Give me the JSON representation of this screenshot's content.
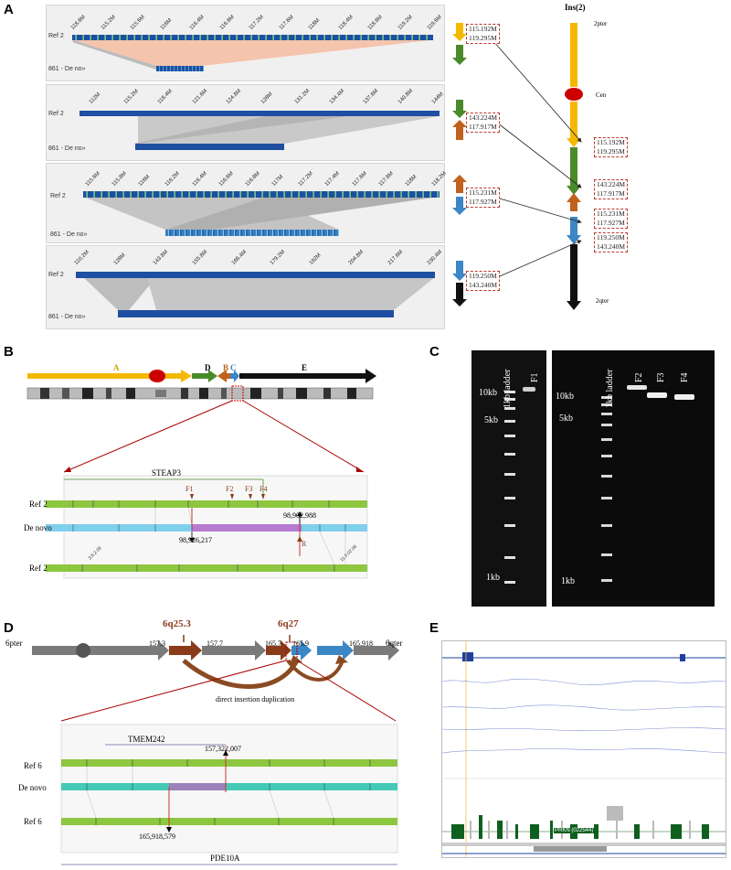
{
  "panels": {
    "a": "A",
    "b": "B",
    "c": "C",
    "d": "D",
    "e": "E"
  },
  "panelA": {
    "rows": [
      {
        "ref_label": "Ref 2",
        "query_label": "861 - De no»",
        "ticks": [
          "118.8M",
          "115.2M",
          "115.6M",
          "116M",
          "116.4M",
          "116.8M",
          "117.2M",
          "117.6M",
          "118M",
          "118.4M",
          "118.8M",
          "119.2M",
          "119.6M"
        ]
      },
      {
        "ref_label": "Ref 2",
        "query_label": "861 - De no»",
        "ticks": [
          "112M",
          "115.2M",
          "118.4M",
          "121.6M",
          "124.8M",
          "128M",
          "131.2M",
          "134.4M",
          "137.6M",
          "140.8M",
          "144M"
        ]
      },
      {
        "ref_label": "Ref 2",
        "query_label": "861 - De no»",
        "ticks": [
          "115.6M",
          "115.8M",
          "116M",
          "116.2M",
          "116.4M",
          "116.6M",
          "116.8M",
          "117M",
          "117.2M",
          "117.4M",
          "117.6M",
          "117.8M",
          "118M",
          "118.2M"
        ]
      },
      {
        "ref_label": "Ref 2",
        "query_label": "861 - De no»",
        "ticks": [
          "110.2M",
          "128M",
          "143.8M",
          "155.8M",
          "166.4M",
          "179.2M",
          "192M",
          "204.8M",
          "217.6M",
          "230.4M"
        ]
      }
    ],
    "coords": [
      [
        "115.192M",
        "119.295M"
      ],
      [
        "143.224M",
        "117.917M"
      ],
      [
        "115.231M",
        "117.927M"
      ],
      [
        "119.250M",
        "143.240M"
      ]
    ],
    "ins_title": "Ins(2)",
    "pter": "2pter",
    "cen": "Cen",
    "qter": "2qter",
    "right_coords": [
      [
        "115.192M",
        "119.295M"
      ],
      [
        "143.224M",
        "117.917M"
      ],
      [
        "115.231M",
        "117.927M"
      ],
      [
        "119.250M",
        "143.240M"
      ]
    ]
  },
  "panelB": {
    "seg_labels": {
      "a": "A",
      "d": "D",
      "b": "B",
      "c": "C",
      "e": "E"
    },
    "gene": "STEAP3",
    "primers": [
      "F1",
      "F2",
      "F3",
      "F4"
    ],
    "rev_primer": "R",
    "tracks": [
      "Ref 2",
      "De novo",
      "Ref 2"
    ],
    "coord_left": "98,926,217",
    "coord_right": "98,902,988",
    "small_ticks": [
      "3.6.2.06",
      "11.0.02.06"
    ]
  },
  "panelC": {
    "ladder": "1kb ladder",
    "lanes": [
      "F1",
      "F2",
      "F3",
      "F4"
    ],
    "markers": {
      "m10": "10kb",
      "m5": "5kb",
      "m1": "1kb"
    }
  },
  "panelD": {
    "pter": "6pter",
    "qter": "6qter",
    "band1": "6q25.3",
    "band2": "6q27",
    "positions": [
      "157.3",
      "157.7",
      "165.7",
      "165.9",
      "165.918"
    ],
    "caption": "direct insertion duplication",
    "gene_top": "TMEM242",
    "gene_bottom": "PDE10A",
    "tracks": [
      "Ref 6",
      "De novo",
      "Ref 6"
    ],
    "coord_top": "157,322,007",
    "coord_bottom": "165,918,579"
  },
  "panelE": {
    "gene_label": "PRKN (022544)"
  },
  "colors": {
    "yellow": "#f5b800",
    "green": "#4a8a2a",
    "orange": "#c0621b",
    "blue": "#3b86c4",
    "black": "#111111",
    "grey": "#7a7a7a",
    "brown": "#8b3a1a"
  }
}
